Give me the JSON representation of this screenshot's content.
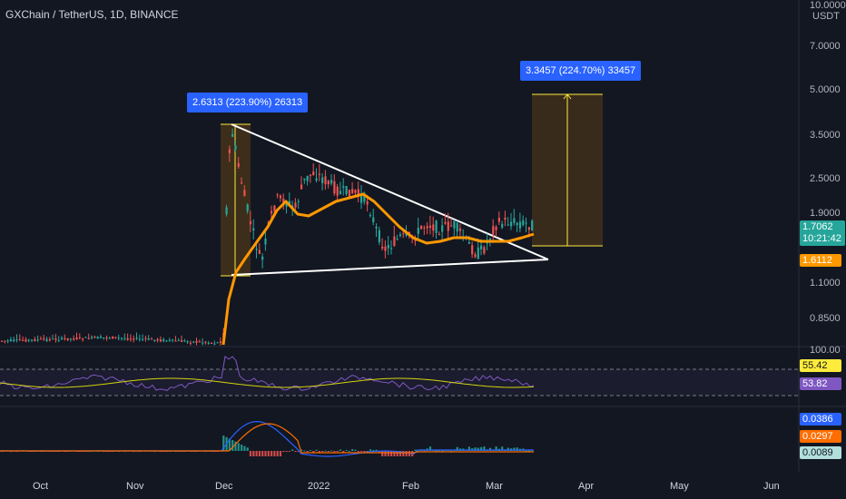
{
  "header": {
    "title": "GXChain / TetherUS, 1D, BINANCE"
  },
  "price_axis": {
    "currency": "USDT",
    "ticks": [
      "10.0000",
      "7.0000",
      "5.0000",
      "3.5000",
      "2.5000",
      "1.9000",
      "1.1000",
      "0.8500"
    ],
    "current_price": "1.7062",
    "countdown": "10:21:42",
    "ema_value": "1.6112"
  },
  "rsi_axis": {
    "top": "100.00",
    "rsi": "55.42",
    "ma": "53.82"
  },
  "macd_axis": {
    "macd": "0.0386",
    "signal": "0.0297",
    "hist": "0.0089"
  },
  "time_axis": [
    "Oct",
    "Nov",
    "Dec",
    "2022",
    "Feb",
    "Mar",
    "Apr",
    "May",
    "Jun"
  ],
  "annotations": {
    "first_measure": "2.6313 (223.90%) 26313",
    "second_measure": "3.3457 (224.70%) 33457"
  },
  "colors": {
    "background": "#131722",
    "up": "#26a69a",
    "down": "#ef5350",
    "ema": "#ff9800",
    "rsi": "#7e57c2",
    "rsi_ma": "#d4d410",
    "macd": "#2962ff",
    "signal": "#ff6d00",
    "measure": "#2962ff"
  },
  "chart_data": {
    "type": "candlestick",
    "symbol": "GXChain / TetherUS",
    "interval": "1D",
    "exchange": "BINANCE",
    "y_scale": "log",
    "ylim": [
      0.75,
      10.0
    ],
    "key_levels": {
      "december_high": 3.85,
      "triangle_start_low": 1.19,
      "current_price": 1.7062,
      "ema": 1.6112,
      "target": 4.9
    },
    "pattern": "descending triangle",
    "indicators": [
      "EMA",
      "RSI",
      "MACD"
    ]
  }
}
